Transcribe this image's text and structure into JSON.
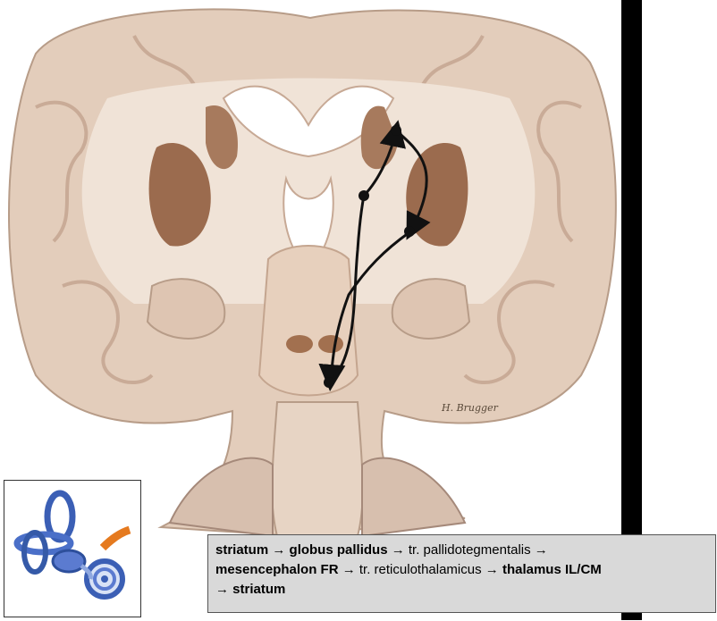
{
  "caption": {
    "line1": [
      {
        "text": "striatum",
        "bold": true
      },
      {
        "text": " → ",
        "bold": false
      },
      {
        "text": "globus pallidus",
        "bold": true
      },
      {
        "text": " → tr. pallidotegmentalis →",
        "bold": false
      }
    ],
    "line2": [
      {
        "text": "mesencephalon FR",
        "bold": true
      },
      {
        "text": " → tr. reticulothalamicus → ",
        "bold": false
      },
      {
        "text": "thalamus IL/CM",
        "bold": true
      }
    ],
    "line3": [
      {
        "text": "→ ",
        "bold": false
      },
      {
        "text": "striatum",
        "bold": true
      }
    ]
  },
  "signature": "H. Brugger",
  "thumbnail_icon": "inner-ear-icon",
  "colors": {
    "tissue": "#e8d3c2",
    "white_matter": "#f2e6da",
    "nuclei": "#9b6b4e",
    "pathway": "#111111",
    "caption_bg": "#d9d9d9"
  }
}
